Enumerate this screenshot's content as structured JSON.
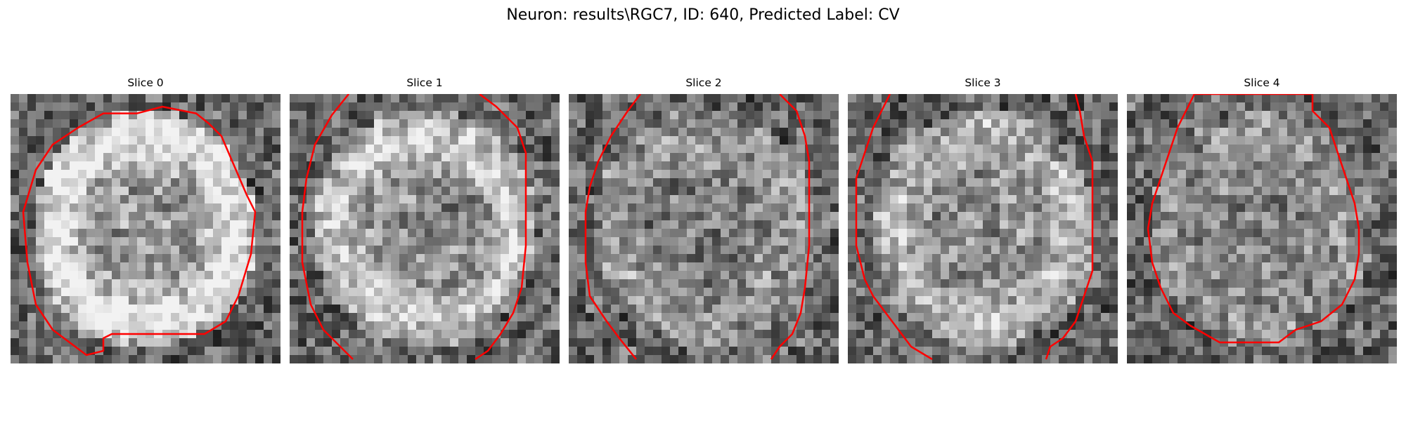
{
  "figure": {
    "suptitle": "Neuron: results\\RGC7, ID: 640, Predicted Label: CV",
    "outline_color": "#ff0000",
    "colormap": "gray",
    "grid_size": 32
  },
  "panels": [
    {
      "title": "Slice 0"
    },
    {
      "title": "Slice 1"
    },
    {
      "title": "Slice 2"
    },
    {
      "title": "Slice 3"
    },
    {
      "title": "Slice 4"
    }
  ]
}
